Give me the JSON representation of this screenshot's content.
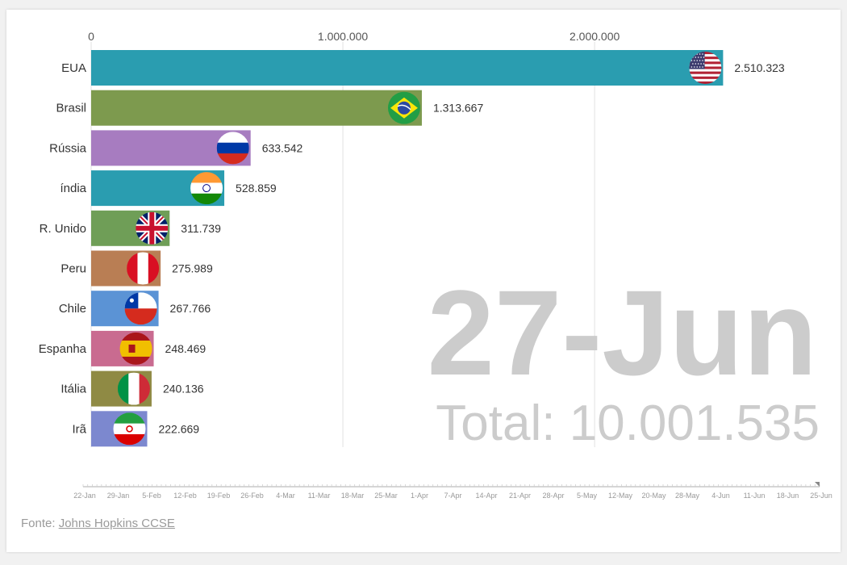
{
  "chart_data": {
    "type": "bar",
    "orientation": "horizontal",
    "categories": [
      "EUA",
      "Brasil",
      "Rússia",
      "índia",
      "R. Unido",
      "Peru",
      "Chile",
      "Espanha",
      "Itália",
      "Irã"
    ],
    "values": [
      2510323,
      1313667,
      633542,
      528859,
      311739,
      275989,
      267766,
      248469,
      240136,
      222669
    ],
    "value_labels": [
      "2.510.323",
      "1.313.667",
      "633.542",
      "528.859",
      "311.739",
      "275.989",
      "267.766",
      "248.469",
      "240.136",
      "222.669"
    ],
    "flags": [
      "us-flag",
      "brazil-flag",
      "russia-flag",
      "india-flag",
      "uk-flag",
      "peru-flag",
      "chile-flag",
      "spain-flag",
      "italy-flag",
      "iran-flag"
    ],
    "colors": [
      "#2a9db0",
      "#7d9a4e",
      "#a77cc0",
      "#2a9db0",
      "#6f9e57",
      "#b97e54",
      "#5b93d5",
      "#c96b90",
      "#8f8a44",
      "#7c88cf"
    ],
    "xlim": [
      0,
      2900000
    ],
    "x_ticks": [
      0,
      1000000,
      2000000
    ],
    "x_tick_labels": [
      "0",
      "1.000.000",
      "2.000.000"
    ],
    "grid": true,
    "date_label": "27-Jun",
    "total_label": "Total: 10.001.535",
    "timeline_labels": [
      "22-Jan",
      "29-Jan",
      "5-Feb",
      "12-Feb",
      "19-Feb",
      "26-Feb",
      "4-Mar",
      "11-Mar",
      "18-Mar",
      "25-Mar",
      "1-Apr",
      "7-Apr",
      "14-Apr",
      "21-Apr",
      "28-Apr",
      "5-May",
      "12-May",
      "20-May",
      "28-May",
      "4-Jun",
      "11-Jun",
      "18-Jun",
      "25-Jun"
    ],
    "timeline_progress": 1.0
  },
  "source": {
    "prefix": "Fonte: ",
    "link_text": "Johns Hopkins CCSE"
  }
}
